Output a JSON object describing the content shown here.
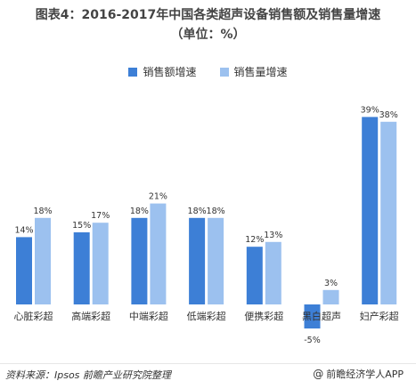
{
  "title": {
    "line1": "图表4：2016-2017年中国各类超声设备销售额及销售量增速",
    "line2": "（单位：%）"
  },
  "colors": {
    "series1": "#3d7fd6",
    "series2": "#9cc1ef",
    "label": "#333333"
  },
  "chart_data": {
    "type": "bar",
    "categories": [
      "心脏彩超",
      "高端彩超",
      "中端彩超",
      "低端彩超",
      "便携彩超",
      "黑白超声",
      "妇产彩超"
    ],
    "series": [
      {
        "name": "销售额增速",
        "values": [
          14,
          15,
          18,
          18,
          12,
          -5,
          39
        ],
        "labels": [
          "14%",
          "15%",
          "18%",
          "18%",
          "12%",
          "-5%",
          "39%"
        ]
      },
      {
        "name": "销售量增速",
        "values": [
          18,
          17,
          21,
          18,
          13,
          3,
          38
        ],
        "labels": [
          "18%",
          "17%",
          "21%",
          "18%",
          "13%",
          "3%",
          "38%"
        ]
      }
    ],
    "legend_position": "top",
    "grid": false
  },
  "footer": {
    "source": "资料来源：Ipsos 前瞻产业研究院整理",
    "brand_icon": "at-icon",
    "brand": "前瞻经济学人APP"
  }
}
